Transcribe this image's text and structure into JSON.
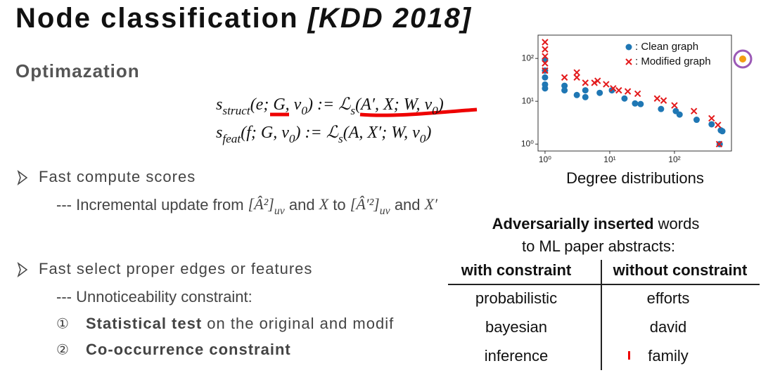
{
  "title": {
    "main": "Node classification ",
    "venue": "[KDD 2018]"
  },
  "subtitle": "Optimazation",
  "formulas": [
    [
      {
        "text": "s"
      },
      {
        "text": "struct",
        "sub": true
      },
      {
        "text": "(e; G, v"
      },
      {
        "text": "0",
        "sub": true
      },
      {
        "text": ") := ℒ"
      },
      {
        "text": "s",
        "sub": true
      },
      {
        "text": "(A′, X; W, v"
      },
      {
        "text": "0",
        "sub": true
      },
      {
        "text": ")"
      }
    ],
    [
      {
        "text": "s"
      },
      {
        "text": "feat",
        "sub": true
      },
      {
        "text": "(f; G, v"
      },
      {
        "text": "0",
        "sub": true
      },
      {
        "text": ") := ℒ"
      },
      {
        "text": "s",
        "sub": true
      },
      {
        "text": "(A, X′; W, v"
      },
      {
        "text": "0",
        "sub": true
      },
      {
        "text": ")"
      }
    ]
  ],
  "bullets": [
    {
      "text": "Fast compute scores",
      "details": [
        [
          {
            "text": "--- Incremental update from "
          },
          {
            "text": "[Â²]",
            "math": true
          },
          {
            "text": "uv",
            "sub": true,
            "math": true
          },
          {
            "text": " and "
          },
          {
            "text": "X",
            "math": true
          },
          {
            "text": " to "
          },
          {
            "text": "[Â′²]",
            "math": true
          },
          {
            "text": "uv",
            "sub": true,
            "math": true
          },
          {
            "text": " and "
          },
          {
            "text": "X′",
            "math": true
          }
        ]
      ]
    },
    {
      "text": "Fast select proper edges or features",
      "details": [
        [
          {
            "text": "--- Unnoticeability constraint:"
          }
        ]
      ],
      "items": [
        {
          "marker": "①",
          "bold": "Statistical test",
          "rest": " on the original and modif"
        },
        {
          "marker": "②",
          "bold": "Co-occurrence constraint"
        }
      ]
    }
  ],
  "table": {
    "heading": {
      "bold": "Adversarially inserted",
      "rest": " words",
      "line2": "to ML paper abstracts:"
    },
    "columns": [
      "with constraint",
      "without constraint"
    ],
    "rows": [
      [
        "probabilistic",
        "efforts"
      ],
      [
        "bayesian",
        "david"
      ],
      [
        "inference",
        "family"
      ]
    ]
  },
  "chart_data": {
    "type": "scatter",
    "xlabel": "Degree distributions",
    "log_x": true,
    "log_y": true,
    "legend": "upper right",
    "xlim": [
      0.78,
      760
    ],
    "ylim": [
      0.69,
      350
    ],
    "xticks": [
      {
        "value": 1,
        "label": "10⁰"
      },
      {
        "value": 10,
        "label": "10¹"
      },
      {
        "value": 100,
        "label": "10²"
      }
    ],
    "yticks": [
      {
        "value": 1,
        "label": "10⁰"
      },
      {
        "value": 10,
        "label": "10¹"
      },
      {
        "value": 100,
        "label": "10²"
      }
    ],
    "series": [
      {
        "name": ": Clean graph",
        "color": "#1f77b4",
        "marker": "o",
        "x": [
          1,
          1,
          1,
          1,
          1,
          2,
          2,
          3.1,
          4.2,
          4.2,
          7,
          10.8,
          16.9,
          24.6,
          30,
          62,
          105,
          120,
          220,
          375,
          520,
          550,
          500
        ],
        "y": [
          93,
          52,
          36,
          24.6,
          20,
          23,
          18,
          14,
          18,
          12.5,
          15.7,
          18,
          11.6,
          8.9,
          8.6,
          6.6,
          5.9,
          4.9,
          3.7,
          2.9,
          2.1,
          2,
          1
        ]
      },
      {
        "name": ": Modified graph",
        "color": "#e31a1c",
        "marker": "x",
        "x": [
          1,
          1,
          1,
          1,
          1,
          2,
          3.1,
          3.1,
          4.2,
          5.8,
          6.5,
          8.8,
          11.3,
          13.8,
          19,
          27,
          54,
          68,
          100,
          200,
          375,
          470,
          490
        ],
        "y": [
          240,
          163,
          112,
          77,
          52,
          36,
          47,
          36,
          27,
          27,
          30,
          25,
          20,
          18,
          17,
          15,
          11.6,
          10.4,
          8,
          5.9,
          4,
          2.8,
          1
        ]
      }
    ]
  }
}
